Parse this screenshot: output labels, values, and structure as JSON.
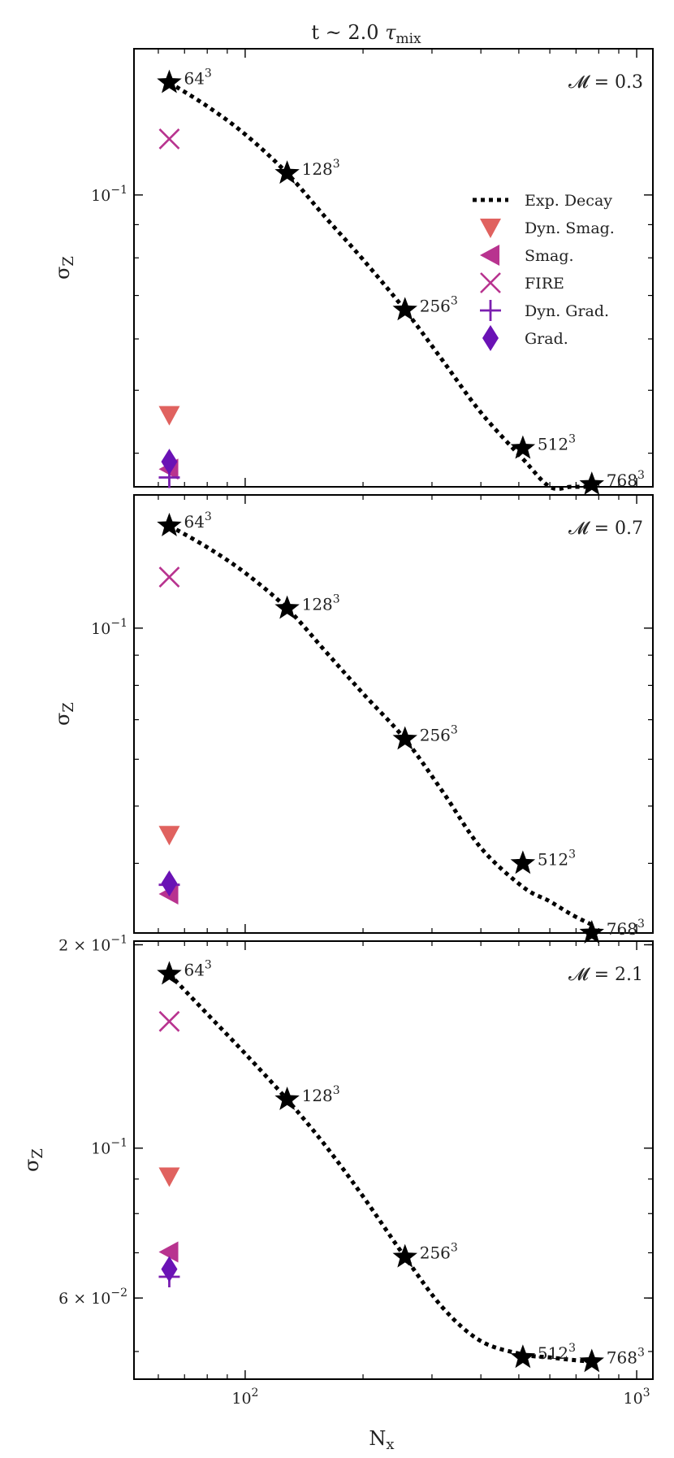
{
  "figure": {
    "title_prefix": "t ~ 2.0 ",
    "title_tau": "τ",
    "title_sub": "mix",
    "xlabel_main": "N",
    "xlabel_sub": "x",
    "ylabel_main": "σ",
    "ylabel_sub": "Z"
  },
  "colors": {
    "stars": "#000000",
    "dyn_smag": "#e0625f",
    "smag": "#b8338f",
    "fire": "#b8338f",
    "dyn_grad": "#7b1fb0",
    "grad": "#6a12b5"
  },
  "legend": [
    {
      "key": "exp_decay",
      "label": "Exp. Decay",
      "marker": "dotted-line"
    },
    {
      "key": "dyn_smag",
      "label": "Dyn. Smag.",
      "marker": "triangle-down"
    },
    {
      "key": "smag",
      "label": "Smag.",
      "marker": "triangle-left"
    },
    {
      "key": "fire",
      "label": "FIRE",
      "marker": "x"
    },
    {
      "key": "dyn_grad",
      "label": "Dyn. Grad.",
      "marker": "plus"
    },
    {
      "key": "grad",
      "label": "Grad.",
      "marker": "diamond"
    }
  ],
  "chart_data": [
    {
      "type": "scatter",
      "panel_label": "𝓜 = 0.3",
      "xscale": "log",
      "yscale": "log",
      "xlim": [
        52,
        1100
      ],
      "ylim": [
        0.0355,
        0.168
      ],
      "x_ticks": [
        {
          "v": 100,
          "base": "10",
          "exp": "2"
        },
        {
          "v": 1000,
          "base": "10",
          "exp": "3"
        }
      ],
      "y_ticks": [
        {
          "v": 0.1,
          "mant": "",
          "base": "10",
          "exp": "−1"
        }
      ],
      "series": [
        {
          "name": "Exp. Decay",
          "style": "dotted-line",
          "x": [
            64,
            80,
            100,
            128,
            160,
            200,
            256,
            320,
            400,
            512,
            600,
            680,
            768
          ],
          "y": [
            0.149,
            0.137,
            0.124,
            0.108,
            0.0925,
            0.0795,
            0.0665,
            0.0555,
            0.0462,
            0.0392,
            0.0355,
            0.0355,
            0.0355
          ]
        },
        {
          "name": "Dyn. Smag.",
          "x": [
            64
          ],
          "y": [
            0.0458
          ]
        },
        {
          "name": "Smag.",
          "x": [
            64
          ],
          "y": [
            0.0378
          ]
        },
        {
          "name": "FIRE",
          "x": [
            64
          ],
          "y": [
            0.122
          ]
        },
        {
          "name": "Dyn. Grad.",
          "x": [
            64
          ],
          "y": [
            0.0367
          ]
        },
        {
          "name": "Grad.",
          "x": [
            64
          ],
          "y": [
            0.0388
          ]
        }
      ],
      "stars": [
        {
          "x": 64,
          "y": 0.149,
          "base": "64",
          "exp": "3"
        },
        {
          "x": 128,
          "y": 0.108,
          "base": "128",
          "exp": "3"
        },
        {
          "x": 256,
          "y": 0.0665,
          "base": "256",
          "exp": "3"
        },
        {
          "x": 512,
          "y": 0.0407,
          "base": "512",
          "exp": "3"
        },
        {
          "x": 768,
          "y": 0.0358,
          "base": "768",
          "exp": "3"
        }
      ],
      "legend_loc": "center right"
    },
    {
      "type": "scatter",
      "panel_label": "𝓜 = 0.7",
      "xscale": "log",
      "yscale": "log",
      "xlim": [
        52,
        1100
      ],
      "ylim": [
        0.0305,
        0.168
      ],
      "x_ticks": [
        {
          "v": 100,
          "base": "10",
          "exp": "2"
        },
        {
          "v": 1000,
          "base": "10",
          "exp": "3"
        }
      ],
      "y_ticks": [
        {
          "v": 0.1,
          "mant": "",
          "base": "10",
          "exp": "−1"
        }
      ],
      "series": [
        {
          "name": "Exp. Decay",
          "style": "dotted-line",
          "x": [
            64,
            80,
            100,
            128,
            160,
            200,
            256,
            320,
            400,
            512,
            600,
            680,
            768
          ],
          "y": [
            0.149,
            0.137,
            0.124,
            0.108,
            0.0915,
            0.0775,
            0.0649,
            0.0528,
            0.0425,
            0.0365,
            0.0345,
            0.0328,
            0.0315
          ]
        },
        {
          "name": "Dyn. Smag.",
          "x": [
            64
          ],
          "y": [
            0.0447
          ]
        },
        {
          "name": "Smag.",
          "x": [
            64
          ],
          "y": [
            0.0355
          ]
        },
        {
          "name": "FIRE",
          "x": [
            64
          ],
          "y": [
            0.122
          ]
        },
        {
          "name": "Dyn. Grad.",
          "x": [
            64
          ],
          "y": [
            0.0368
          ]
        },
        {
          "name": "Grad.",
          "x": [
            64
          ],
          "y": [
            0.037
          ]
        }
      ],
      "stars": [
        {
          "x": 64,
          "y": 0.149,
          "base": "64",
          "exp": "3"
        },
        {
          "x": 128,
          "y": 0.108,
          "base": "128",
          "exp": "3"
        },
        {
          "x": 256,
          "y": 0.0649,
          "base": "256",
          "exp": "3"
        },
        {
          "x": 512,
          "y": 0.04,
          "base": "512",
          "exp": "3"
        },
        {
          "x": 768,
          "y": 0.0305,
          "base": "768",
          "exp": "3"
        }
      ]
    },
    {
      "type": "scatter",
      "panel_label": "𝓜 = 2.1",
      "xscale": "log",
      "yscale": "log",
      "xlim": [
        52,
        1100
      ],
      "ylim": [
        0.0455,
        0.2025
      ],
      "x_ticks": [
        {
          "v": 100,
          "base": "10",
          "exp": "2"
        },
        {
          "v": 1000,
          "base": "10",
          "exp": "3"
        }
      ],
      "y_ticks": [
        {
          "v": 0.2,
          "mant": "2 × ",
          "base": "10",
          "exp": "−1"
        },
        {
          "v": 0.1,
          "mant": "",
          "base": "10",
          "exp": "−1"
        },
        {
          "v": 0.06,
          "mant": "6 × ",
          "base": "10",
          "exp": "−2"
        }
      ],
      "series": [
        {
          "name": "Exp. Decay",
          "style": "dotted-line",
          "x": [
            64,
            80,
            100,
            128,
            160,
            200,
            256,
            320,
            400,
            512,
            600,
            680,
            768
          ],
          "y": [
            0.181,
            0.158,
            0.138,
            0.118,
            0.101,
            0.0848,
            0.069,
            0.058,
            0.0518,
            0.0495,
            0.049,
            0.0486,
            0.0483
          ]
        },
        {
          "name": "Dyn. Smag.",
          "x": [
            64
          ],
          "y": [
            0.0908
          ]
        },
        {
          "name": "Smag.",
          "x": [
            64
          ],
          "y": [
            0.0702
          ]
        },
        {
          "name": "FIRE",
          "x": [
            64
          ],
          "y": [
            0.154
          ]
        },
        {
          "name": "Dyn. Grad.",
          "x": [
            64
          ],
          "y": [
            0.0645
          ]
        },
        {
          "name": "Grad.",
          "x": [
            64
          ],
          "y": [
            0.0662
          ]
        }
      ],
      "stars": [
        {
          "x": 64,
          "y": 0.181,
          "base": "64",
          "exp": "3"
        },
        {
          "x": 128,
          "y": 0.118,
          "base": "128",
          "exp": "3"
        },
        {
          "x": 256,
          "y": 0.069,
          "base": "256",
          "exp": "3"
        },
        {
          "x": 512,
          "y": 0.049,
          "base": "512",
          "exp": "3"
        },
        {
          "x": 768,
          "y": 0.0483,
          "base": "768",
          "exp": "3"
        }
      ]
    }
  ]
}
